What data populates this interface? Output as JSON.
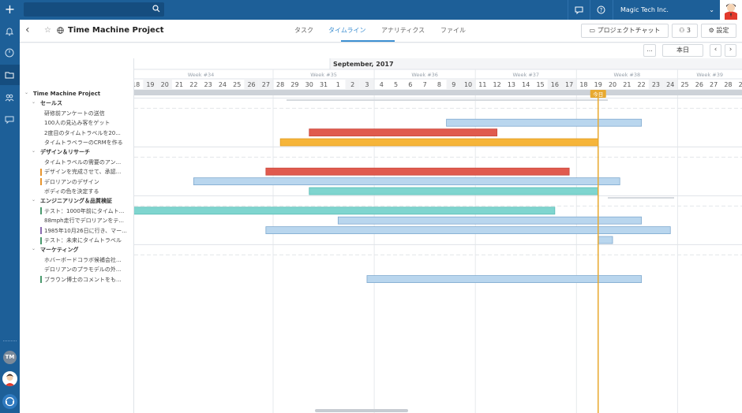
{
  "topbar": {
    "add_icon": "plus-icon",
    "search": {
      "placeholder": "",
      "icon": "search-icon"
    },
    "icons": [
      "chat-bubble-icon",
      "help-icon"
    ],
    "company": "Magic Tech Inc.",
    "avatar": "user-avatar"
  },
  "sidebar": {
    "items": [
      {
        "icon": "bell-icon",
        "active": false
      },
      {
        "icon": "dashboard-icon",
        "active": false
      },
      {
        "icon": "folder-icon",
        "active": true
      },
      {
        "icon": "team-icon",
        "active": false
      },
      {
        "icon": "chat-icon",
        "active": false
      }
    ],
    "user_initials": "TM"
  },
  "header": {
    "title": "Time Machine Project",
    "tabs": [
      {
        "label": "タスク",
        "active": false
      },
      {
        "label": "タイムライン",
        "active": true
      },
      {
        "label": "アナリティクス",
        "active": false
      },
      {
        "label": "ファイル",
        "active": false
      }
    ],
    "project_chat": "プロジェクトチャット",
    "members_count": "3",
    "settings": "設定"
  },
  "toolbar": {
    "more": "...",
    "today": "本日",
    "prev": "‹",
    "next": "›"
  },
  "timeline": {
    "month": "September, 2017",
    "weeks": [
      {
        "label": "Week #34",
        "start_index": 0
      },
      {
        "label": "Week #35",
        "start_index": 10
      },
      {
        "label": "Week #36",
        "start_index": 17
      },
      {
        "label": "Week #37",
        "start_index": 24
      },
      {
        "label": "Week #38",
        "start_index": 31
      },
      {
        "label": "Week #39",
        "start_index": 38
      }
    ],
    "days": [
      "18",
      "19",
      "20",
      "21",
      "22",
      "23",
      "24",
      "25",
      "26",
      "27",
      "28",
      "29",
      "30",
      "31",
      "1",
      "2",
      "3",
      "4",
      "5",
      "6",
      "7",
      "8",
      "9",
      "10",
      "11",
      "12",
      "13",
      "14",
      "15",
      "16",
      "17",
      "18",
      "19",
      "20",
      "21",
      "22",
      "23",
      "24",
      "25",
      "26",
      "27",
      "28",
      "29"
    ],
    "today_index": 32,
    "today_label": "今日"
  },
  "tree": [
    {
      "label": "Time Machine Project",
      "level": 0,
      "type": "group"
    },
    {
      "label": "セールス",
      "level": 1,
      "type": "group"
    },
    {
      "label": "研修前アンケートの送信",
      "level": 2,
      "type": "task",
      "mark": ""
    },
    {
      "label": "100人の見込み客をゲット",
      "level": 2,
      "type": "task",
      "mark": ""
    },
    {
      "label": "2度目のタイムトラベルを20...",
      "level": 2,
      "type": "task",
      "mark": ""
    },
    {
      "label": "タイムトラベラーのCRMを作る",
      "level": 2,
      "type": "task",
      "mark": ""
    },
    {
      "label": "デザイン＆リサーチ",
      "level": 1,
      "type": "group"
    },
    {
      "label": "タイムトラベルの需要のアン...",
      "level": 2,
      "type": "task",
      "mark": ""
    },
    {
      "label": "デザインを完成させて、承認...",
      "level": 2,
      "type": "task",
      "mark": "#e8962f"
    },
    {
      "label": "デロリアンのデザイン",
      "level": 2,
      "type": "task",
      "mark": "#e8962f"
    },
    {
      "label": "ボディの色を決定する",
      "level": 2,
      "type": "task",
      "mark": ""
    },
    {
      "label": "エンジニアリング＆品質検証",
      "level": 1,
      "type": "group"
    },
    {
      "label": "テスト：1000年前にタイムト...",
      "level": 2,
      "type": "task",
      "mark": "#4a9a6e"
    },
    {
      "label": "88mph走行でデロリアンをテ...",
      "level": 2,
      "type": "task",
      "mark": ""
    },
    {
      "label": "1985年10月26日に行き、マー...",
      "level": 2,
      "type": "task",
      "mark": "#8a6ab0"
    },
    {
      "label": "テスト：未来にタイムトラベル",
      "level": 2,
      "type": "task",
      "mark": "#4a9a6e"
    },
    {
      "label": "マーケティング",
      "level": 1,
      "type": "group"
    },
    {
      "label": "ホバーボードコラボ候補会社...",
      "level": 2,
      "type": "task",
      "mark": ""
    },
    {
      "label": "デロリアンのプラモデルの外...",
      "level": 2,
      "type": "task",
      "mark": ""
    },
    {
      "label": "ブラウン博士のコメントをも...",
      "level": 2,
      "type": "task",
      "mark": "#4a9a6e"
    }
  ],
  "bars": [
    {
      "row": 3,
      "start": 22,
      "end": 35.5,
      "color": "#b9d6ee",
      "border": "#7fa9cf"
    },
    {
      "row": 4,
      "start": 12.5,
      "end": 25.5,
      "color": "#e05a4e",
      "border": "#c94a3f"
    },
    {
      "row": 5,
      "start": 10.5,
      "end": 32.5,
      "color": "#f6b53a",
      "border": "#e09a20"
    },
    {
      "row": 8,
      "start": 9.5,
      "end": 30.5,
      "color": "#e05a4e",
      "border": "#c94a3f"
    },
    {
      "row": 9,
      "start": 4.5,
      "end": 34,
      "color": "#b9d6ee",
      "border": "#7fa9cf"
    },
    {
      "row": 10,
      "start": 12.5,
      "end": 32.5,
      "color": "#7fd5cf",
      "border": "#5bbdb6"
    },
    {
      "row": 12,
      "start": 0,
      "end": 29.5,
      "color": "#7fd5cf",
      "border": "#5bbdb6"
    },
    {
      "row": 13,
      "start": 14.5,
      "end": 35.5,
      "color": "#b9d6ee",
      "border": "#7fa9cf"
    },
    {
      "row": 14,
      "start": 9.5,
      "end": 37.5,
      "color": "#b9d6ee",
      "border": "#7fa9cf"
    },
    {
      "row": 15,
      "start": 32.5,
      "end": 33.5,
      "color": "#b9d6ee",
      "border": "#7fa9cf"
    },
    {
      "row": 19,
      "start": 16.5,
      "end": 35.5,
      "color": "#b9d6ee",
      "border": "#7fa9cf"
    }
  ],
  "group_rows": [
    1,
    6,
    11,
    16
  ]
}
